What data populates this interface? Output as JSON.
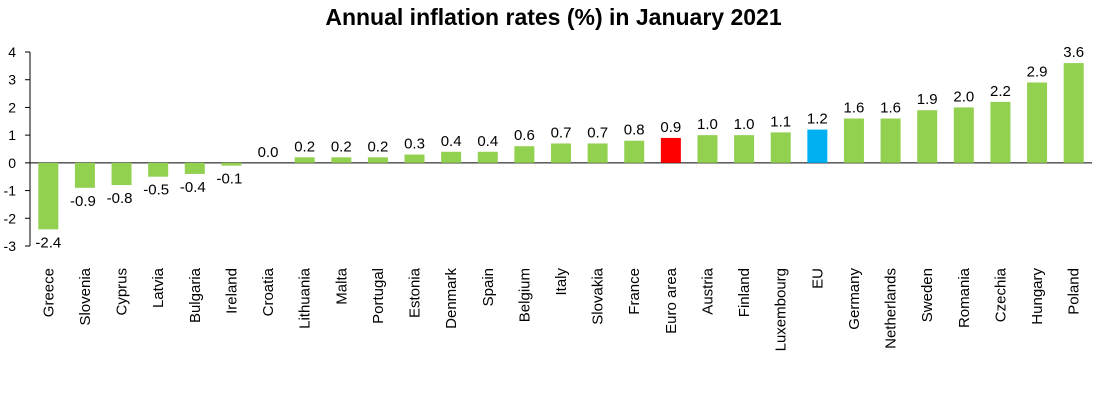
{
  "chart_data": {
    "type": "bar",
    "title": "Annual inflation rates (%) in January 2021",
    "xlabel": "",
    "ylabel": "",
    "ylim": [
      -3,
      4
    ],
    "yticks": [
      "4",
      "3",
      "2",
      "1",
      "0",
      "-1",
      "-2",
      "-3"
    ],
    "grid": false,
    "legend": "none",
    "categories": [
      "Greece",
      "Slovenia",
      "Cyprus",
      "Latvia",
      "Bulgaria",
      "Ireland",
      "Croatia",
      "Lithuania",
      "Malta",
      "Portugal",
      "Estonia",
      "Denmark",
      "Spain",
      "Belgium",
      "Italy",
      "Slovakia",
      "France",
      "Euro area",
      "Austria",
      "Finland",
      "Luxembourg",
      "EU",
      "Germany",
      "Netherlands",
      "Sweden",
      "Romania",
      "Czechia",
      "Hungary",
      "Poland"
    ],
    "values": [
      -2.4,
      -0.9,
      -0.8,
      -0.5,
      -0.4,
      -0.1,
      0.0,
      0.2,
      0.2,
      0.2,
      0.3,
      0.4,
      0.4,
      0.6,
      0.7,
      0.7,
      0.8,
      0.9,
      1.0,
      1.0,
      1.1,
      1.2,
      1.6,
      1.6,
      1.9,
      2.0,
      2.2,
      2.9,
      3.6
    ],
    "labels": [
      "-2.4",
      "-0.9",
      "-0.8",
      "-0.5",
      "-0.4",
      "-0.1",
      "0.0",
      "0.2",
      "0.2",
      "0.2",
      "0.3",
      "0.4",
      "0.4",
      "0.6",
      "0.7",
      "0.7",
      "0.8",
      "0.9",
      "1.0",
      "1.0",
      "1.1",
      "1.2",
      "1.6",
      "1.6",
      "1.9",
      "2.0",
      "2.2",
      "2.9",
      "3.6"
    ],
    "colors": {
      "default": "#92d050",
      "Euro area": "#ff0000",
      "EU": "#00b0f0"
    }
  }
}
